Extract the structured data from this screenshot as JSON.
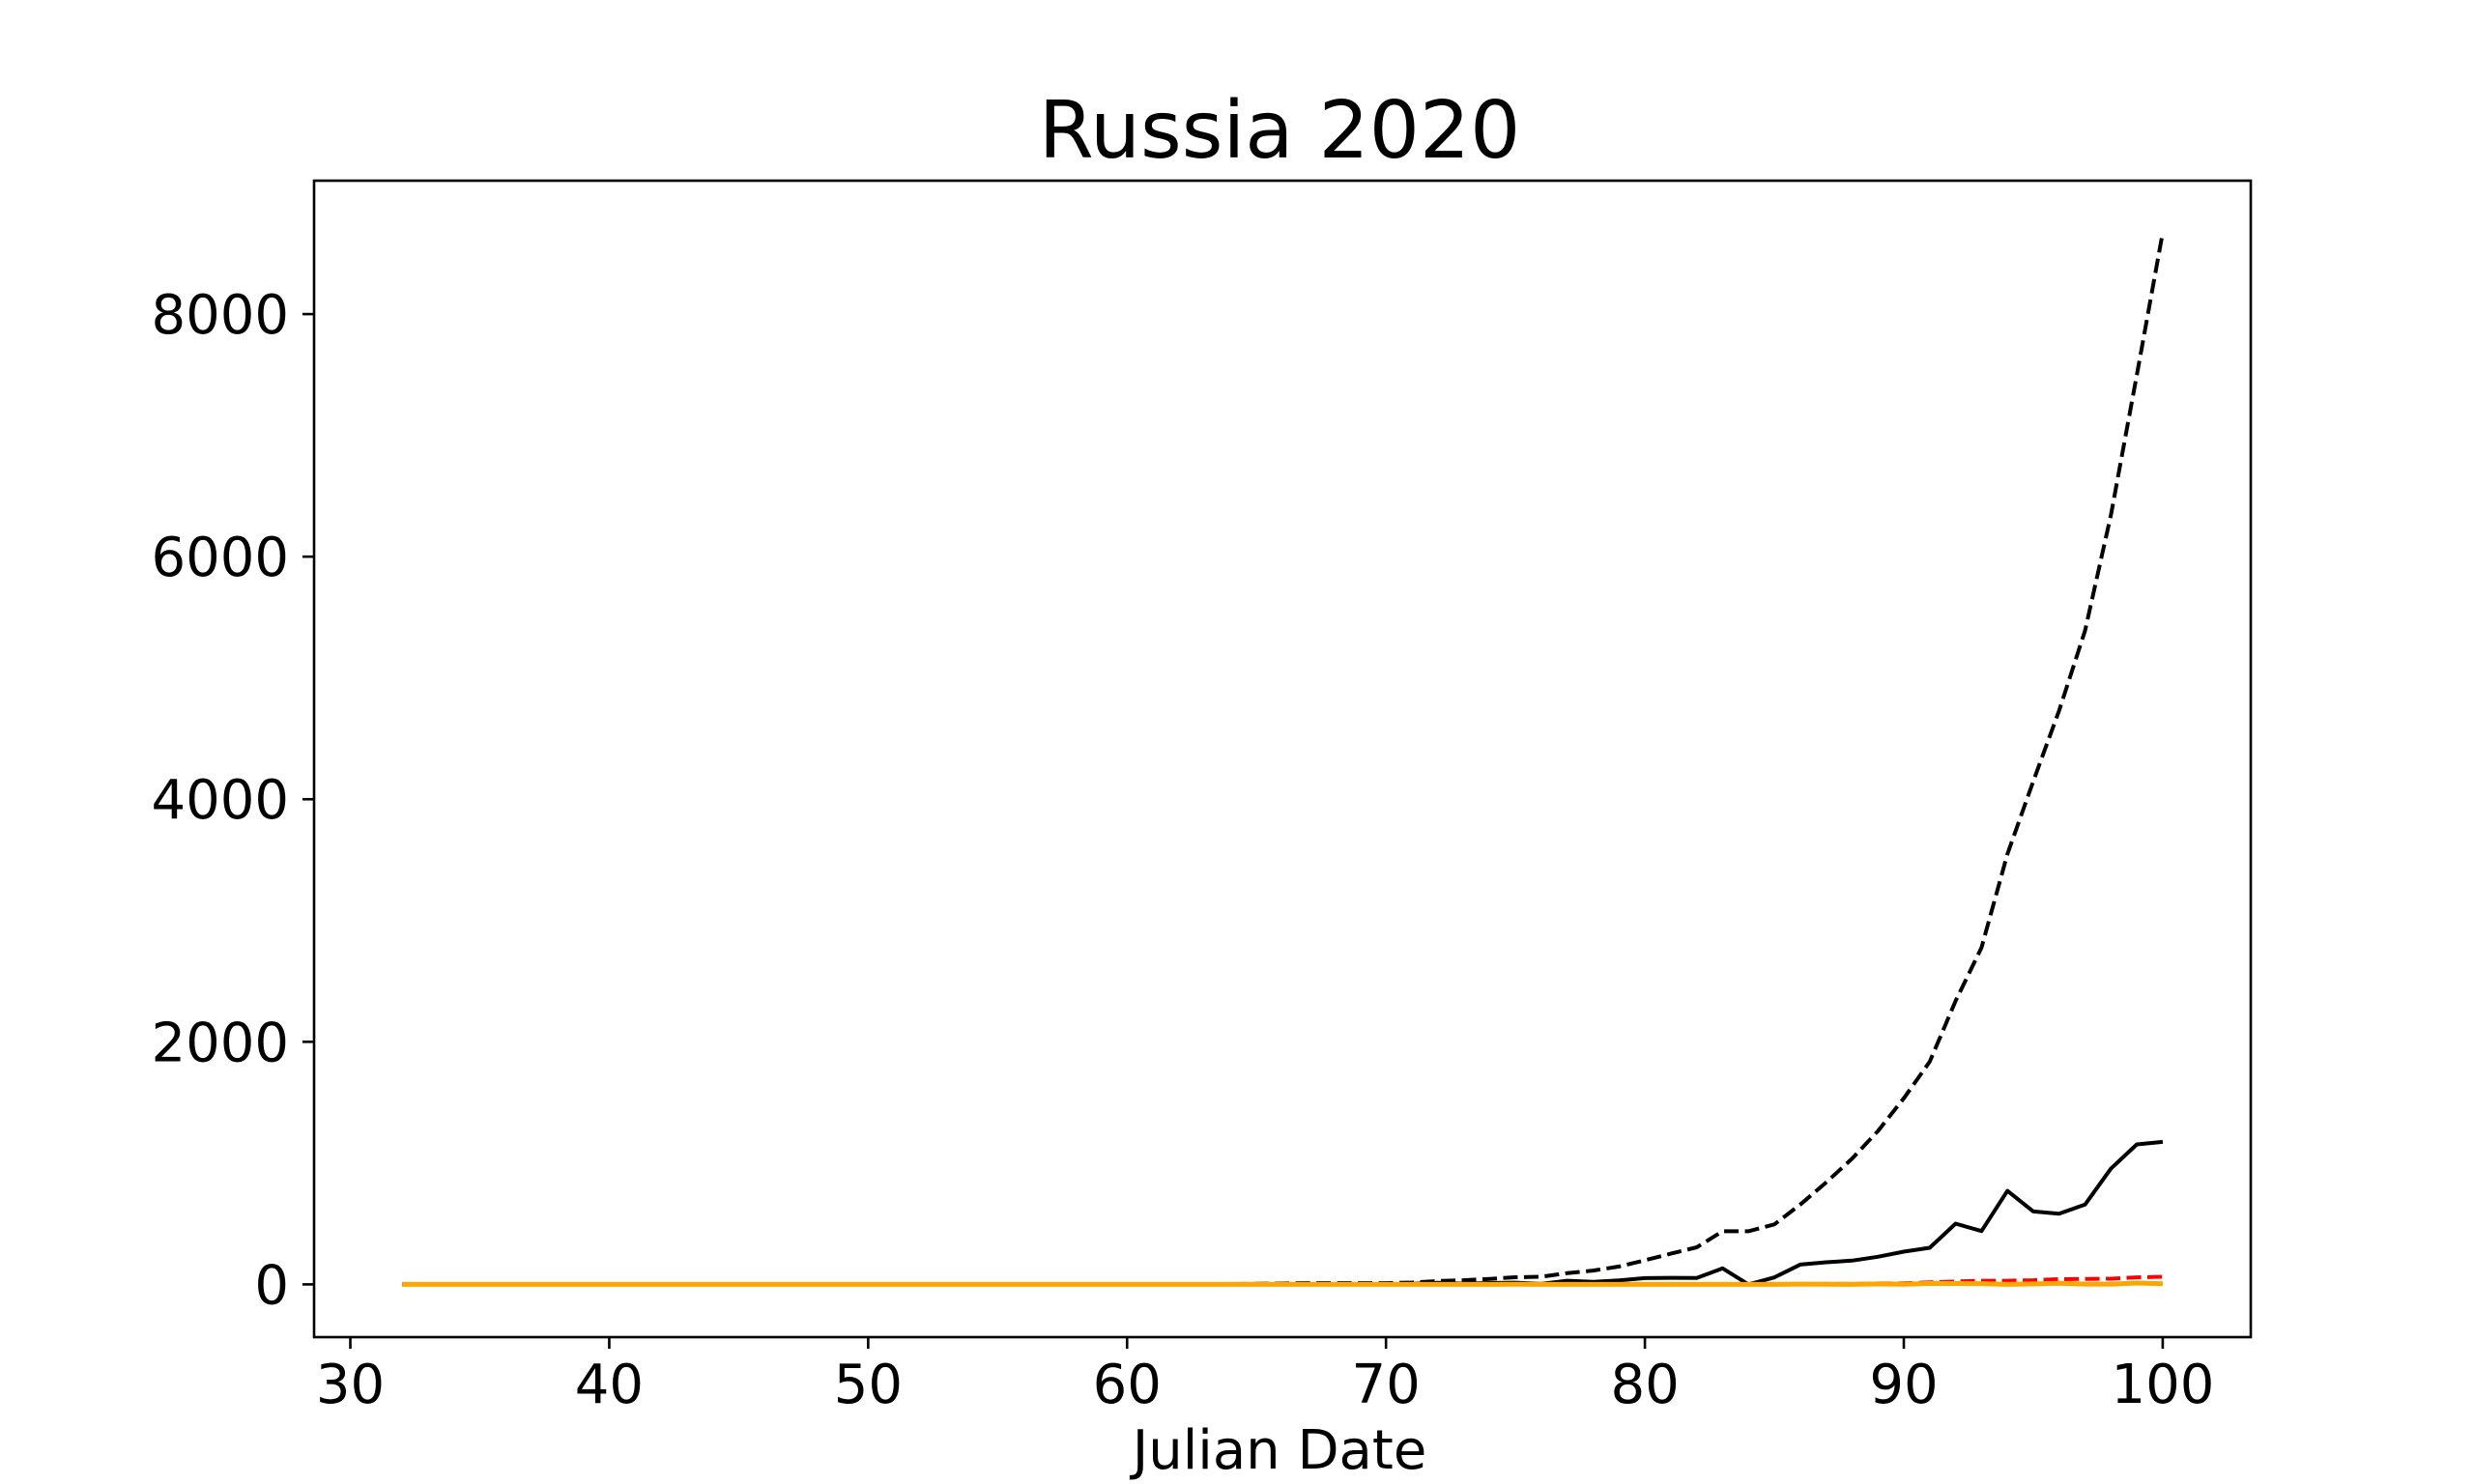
{
  "chart_data": {
    "type": "line",
    "title": "Russia 2020",
    "xlabel": "Julian Date",
    "ylabel": "",
    "xlim": [
      28.6,
      103.4
    ],
    "ylim": [
      -435,
      9100
    ],
    "xticks": [
      30,
      40,
      50,
      60,
      70,
      80,
      90,
      100
    ],
    "yticks": [
      0,
      2000,
      4000,
      6000,
      8000
    ],
    "grid": false,
    "legend": "none",
    "x": [
      32,
      33,
      34,
      35,
      36,
      37,
      38,
      39,
      40,
      41,
      42,
      43,
      44,
      45,
      46,
      47,
      48,
      49,
      50,
      51,
      52,
      53,
      54,
      55,
      56,
      57,
      58,
      59,
      60,
      61,
      62,
      63,
      64,
      65,
      66,
      67,
      68,
      69,
      70,
      71,
      72,
      73,
      74,
      75,
      76,
      77,
      78,
      79,
      80,
      81,
      82,
      83,
      84,
      85,
      86,
      87,
      88,
      89,
      90,
      91,
      92,
      93,
      94,
      95,
      96,
      97,
      98,
      99,
      100
    ],
    "series": [
      {
        "color": "#000000",
        "dash": "dashed",
        "values": [
          2,
          2,
          2,
          2,
          2,
          2,
          2,
          2,
          2,
          2,
          2,
          2,
          2,
          2,
          2,
          2,
          2,
          2,
          2,
          2,
          2,
          2,
          2,
          2,
          2,
          2,
          2,
          3,
          3,
          3,
          3,
          3,
          3,
          5,
          7,
          10,
          10,
          10,
          10,
          15,
          28,
          34,
          45,
          59,
          63,
          93,
          114,
          147,
          199,
          253,
          306,
          438,
          438,
          495,
          658,
          840,
          1036,
          1264,
          1534,
          1836,
          2337,
          2777,
          3548,
          4149,
          4731,
          5389,
          6343,
          7497,
          8672
        ]
      },
      {
        "color": "#000000",
        "dash": "solid",
        "values": [
          0,
          0,
          0,
          0,
          0,
          0,
          0,
          0,
          0,
          0,
          0,
          0,
          0,
          0,
          0,
          0,
          0,
          0,
          0,
          0,
          0,
          0,
          0,
          0,
          0,
          0,
          0,
          1,
          0,
          0,
          0,
          0,
          0,
          2,
          2,
          3,
          0,
          0,
          0,
          5,
          13,
          6,
          11,
          14,
          4,
          30,
          21,
          33,
          52,
          54,
          53,
          132,
          0,
          57,
          163,
          182,
          196,
          228,
          270,
          302,
          501,
          440,
          771,
          601,
          582,
          658,
          954,
          1154,
          1175
        ]
      },
      {
        "color": "#ff0000",
        "dash": "dashed",
        "values": [
          0,
          0,
          0,
          0,
          0,
          0,
          0,
          0,
          0,
          0,
          0,
          0,
          0,
          0,
          0,
          0,
          0,
          0,
          0,
          0,
          0,
          0,
          0,
          0,
          0,
          0,
          0,
          0,
          0,
          0,
          0,
          0,
          0,
          0,
          0,
          0,
          0,
          0,
          0,
          0,
          0,
          0,
          0,
          1,
          1,
          1,
          1,
          1,
          1,
          1,
          1,
          1,
          1,
          1,
          3,
          4,
          4,
          8,
          9,
          17,
          24,
          30,
          30,
          34,
          43,
          45,
          47,
          58,
          63
        ]
      },
      {
        "color": "#ffa500",
        "dash": "solid",
        "values": [
          0,
          0,
          0,
          0,
          0,
          0,
          0,
          0,
          0,
          0,
          0,
          0,
          0,
          0,
          0,
          0,
          0,
          0,
          0,
          0,
          0,
          0,
          0,
          0,
          0,
          0,
          0,
          0,
          0,
          0,
          0,
          0,
          0,
          0,
          0,
          0,
          0,
          0,
          0,
          0,
          0,
          0,
          0,
          1,
          0,
          0,
          0,
          0,
          0,
          0,
          0,
          0,
          0,
          0,
          2,
          1,
          0,
          4,
          1,
          8,
          7,
          6,
          0,
          4,
          9,
          2,
          2,
          11,
          5
        ]
      }
    ]
  }
}
